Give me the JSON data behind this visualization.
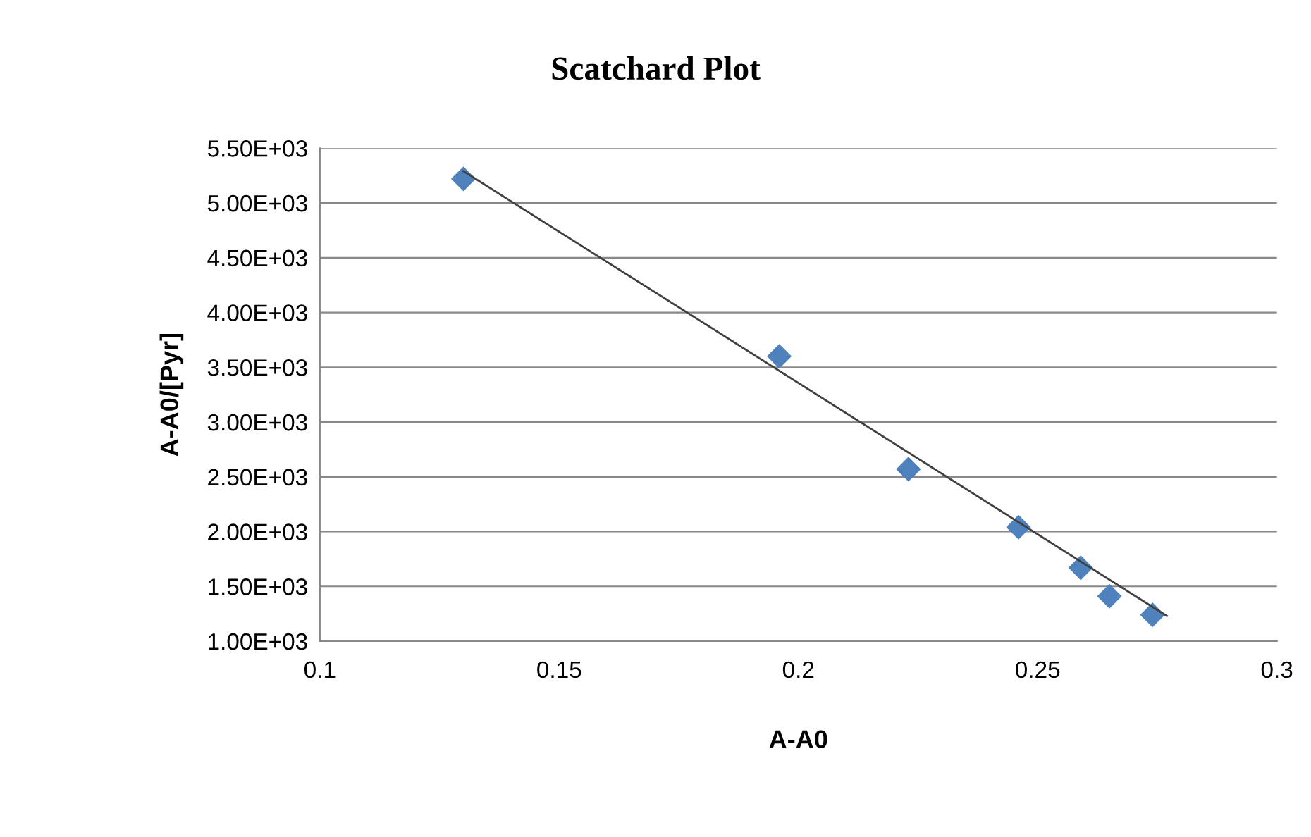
{
  "chart_data": {
    "type": "scatter",
    "title": "Scatchard Plot",
    "xlabel": "A-A0",
    "ylabel": "A-A0/[Pyr]",
    "series": [
      {
        "color": "#4f81bd",
        "marker": "diamond",
        "x": [
          0.13,
          0.196,
          0.223,
          0.246,
          0.259,
          0.265,
          0.274
        ],
        "values": [
          5220,
          3600,
          2570,
          2040,
          1670,
          1410,
          1240
        ]
      },
      {
        "type": "line",
        "color": "#404040",
        "marker": "none",
        "line_style": "solid",
        "x": [
          0.13,
          0.277
        ],
        "values": [
          5290,
          1230
        ]
      }
    ],
    "xlim": [
      0.1,
      0.3
    ],
    "xticks": [
      0.1,
      0.15,
      0.2,
      0.25,
      0.3
    ],
    "ylim": [
      1000,
      5500
    ],
    "yticks": [
      {
        "value": 1000,
        "label": "1.00E+03"
      },
      {
        "value": 1500,
        "label": "1.50E+03"
      },
      {
        "value": 2000,
        "label": "2.00E+03"
      },
      {
        "value": 2500,
        "label": "2.50E+03"
      },
      {
        "value": 3000,
        "label": "3.00E+03"
      },
      {
        "value": 3500,
        "label": "3.50E+03"
      },
      {
        "value": 4000,
        "label": "4.00E+03"
      },
      {
        "value": 4500,
        "label": "4.50E+03"
      },
      {
        "value": 5000,
        "label": "5.00E+03"
      },
      {
        "value": 5500,
        "label": "5.50E+03"
      }
    ],
    "grid": "y"
  }
}
